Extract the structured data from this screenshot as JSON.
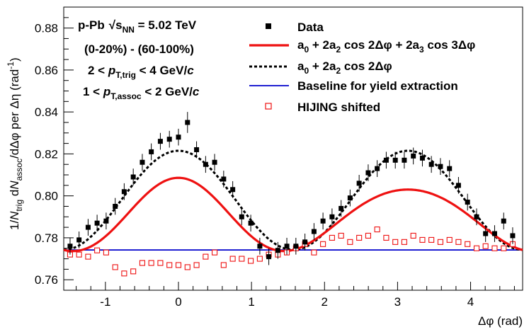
{
  "chart_data": {
    "type": "scatter",
    "xlabel": "Δφ (rad)",
    "ylabel": "1/N_trig dN_assoc/dΔφ per Δη (rad^-1)",
    "ylabel_parts": {
      "pre": "1/",
      "N1": "N",
      "trig": "trig",
      "mid": " d",
      "N2": "N",
      "assoc": "assoc",
      "post": "/dΔφ per Δη (rad",
      "exp": "-1",
      "close": ")"
    },
    "xlim": [
      -1.5708,
      4.7124
    ],
    "ylim": [
      0.755,
      0.89
    ],
    "xticks": [
      -1,
      0,
      1,
      2,
      3,
      4
    ],
    "xtick_labels": [
      "-1",
      "0",
      "1",
      "2",
      "3",
      "4"
    ],
    "yticks": [
      0.76,
      0.78,
      0.8,
      0.82,
      0.84,
      0.86,
      0.88
    ],
    "ytick_labels": [
      "0.76",
      "0.78",
      "0.80",
      "0.82",
      "0.84",
      "0.86",
      "0.88"
    ],
    "annotations": {
      "system": "p-Pb",
      "energy_pre": "s",
      "energy_sub": "NN",
      "energy_val": " = 5.02 TeV",
      "centrality": "(0-20%) - (60-100%)",
      "trig_pre": "2 < ",
      "trig_p": "p",
      "trig_sub": "T,trig",
      "trig_post": " < 4 GeV/",
      "trig_c": "c",
      "assoc_pre": "1 < ",
      "assoc_p": "p",
      "assoc_sub": "T,assoc",
      "assoc_post": " < 2 GeV/",
      "assoc_c": "c"
    },
    "legend": {
      "position": "top-right",
      "entries": [
        {
          "key": "data",
          "label": "Data"
        },
        {
          "key": "fit3",
          "label": "a0 + 2a2 cos 2Δφ + 2a3 cos 3Δφ",
          "parts": [
            "a",
            "0",
            " + 2a",
            "2",
            " cos 2Δφ + 2a",
            "3",
            " cos 3Δφ"
          ]
        },
        {
          "key": "fit2",
          "label": "a0 + 2a2 cos 2Δφ",
          "parts": [
            "a",
            "0",
            " + 2a",
            "2",
            " cos 2Δφ"
          ]
        },
        {
          "key": "baseline",
          "label": "Baseline for yield extraction"
        },
        {
          "key": "hijing",
          "label": "HIJING shifted"
        }
      ]
    },
    "colors": {
      "data": "#000000",
      "fit3": "#ee1111",
      "fit2": "#000000",
      "baseline": "#0000cc",
      "hijing": "#ee1111"
    },
    "series": [
      {
        "name": "Data",
        "x": [
          -1.484,
          -1.361,
          -1.237,
          -1.114,
          -0.99,
          -0.866,
          -0.743,
          -0.619,
          -0.495,
          -0.372,
          -0.248,
          -0.124,
          0.0,
          0.124,
          0.248,
          0.372,
          0.495,
          0.619,
          0.743,
          0.866,
          0.99,
          1.114,
          1.237,
          1.361,
          1.484,
          1.608,
          1.732,
          1.856,
          1.979,
          2.103,
          2.227,
          2.35,
          2.474,
          2.598,
          2.721,
          2.845,
          2.969,
          3.092,
          3.216,
          3.34,
          3.463,
          3.587,
          3.711,
          3.834,
          3.958,
          4.082,
          4.205,
          4.329,
          4.453,
          4.576
        ],
        "y": [
          0.776,
          0.779,
          0.785,
          0.787,
          0.788,
          0.795,
          0.802,
          0.809,
          0.816,
          0.821,
          0.826,
          0.827,
          0.828,
          0.835,
          0.822,
          0.815,
          0.816,
          0.808,
          0.803,
          0.79,
          0.787,
          0.776,
          0.771,
          0.774,
          0.776,
          0.776,
          0.778,
          0.783,
          0.788,
          0.79,
          0.794,
          0.799,
          0.806,
          0.811,
          0.813,
          0.817,
          0.817,
          0.817,
          0.819,
          0.818,
          0.815,
          0.814,
          0.813,
          0.805,
          0.797,
          0.79,
          0.782,
          0.782,
          0.788,
          0.781
        ],
        "yerr": [
          0.004,
          0.004,
          0.004,
          0.004,
          0.004,
          0.004,
          0.004,
          0.004,
          0.004,
          0.004,
          0.004,
          0.004,
          0.004,
          0.005,
          0.004,
          0.004,
          0.004,
          0.004,
          0.004,
          0.004,
          0.004,
          0.004,
          0.004,
          0.004,
          0.004,
          0.004,
          0.004,
          0.004,
          0.004,
          0.004,
          0.004,
          0.004,
          0.004,
          0.004,
          0.004,
          0.004,
          0.004,
          0.004,
          0.004,
          0.004,
          0.004,
          0.004,
          0.004,
          0.004,
          0.004,
          0.004,
          0.004,
          0.004,
          0.004,
          0.004
        ]
      },
      {
        "name": "HIJING shifted",
        "x": [
          -1.484,
          -1.361,
          -1.237,
          -1.114,
          -0.99,
          -0.866,
          -0.743,
          -0.619,
          -0.495,
          -0.372,
          -0.248,
          -0.124,
          0.0,
          0.124,
          0.248,
          0.372,
          0.495,
          0.619,
          0.743,
          0.866,
          0.99,
          1.114,
          1.237,
          1.361,
          1.484,
          1.608,
          1.732,
          1.856,
          1.979,
          2.103,
          2.227,
          2.35,
          2.474,
          2.598,
          2.721,
          2.845,
          2.969,
          3.092,
          3.216,
          3.34,
          3.463,
          3.587,
          3.711,
          3.834,
          3.958,
          4.082,
          4.205,
          4.329,
          4.453,
          4.576
        ],
        "y": [
          0.772,
          0.772,
          0.771,
          0.774,
          0.773,
          0.766,
          0.763,
          0.764,
          0.768,
          0.768,
          0.768,
          0.767,
          0.767,
          0.766,
          0.767,
          0.771,
          0.773,
          0.767,
          0.77,
          0.77,
          0.769,
          0.77,
          0.772,
          0.772,
          0.773,
          0.775,
          0.777,
          0.773,
          0.777,
          0.78,
          0.781,
          0.778,
          0.78,
          0.781,
          0.784,
          0.78,
          0.778,
          0.778,
          0.781,
          0.779,
          0.779,
          0.778,
          0.779,
          0.778,
          0.777,
          0.775,
          0.776,
          0.775,
          0.775,
          0.777
        ]
      },
      {
        "name": "a0 + 2a2 cos 2Δφ + 2a3 cos 3Δφ",
        "fit": {
          "a0": 0.79,
          "a2": 0.0079,
          "a3": 0.0014
        }
      },
      {
        "name": "a0 + 2a2 cos 2Δφ",
        "fit": {
          "a0": 0.7979,
          "a2": 0.0118
        }
      },
      {
        "name": "Baseline for yield extraction",
        "y": 0.7742
      }
    ]
  }
}
